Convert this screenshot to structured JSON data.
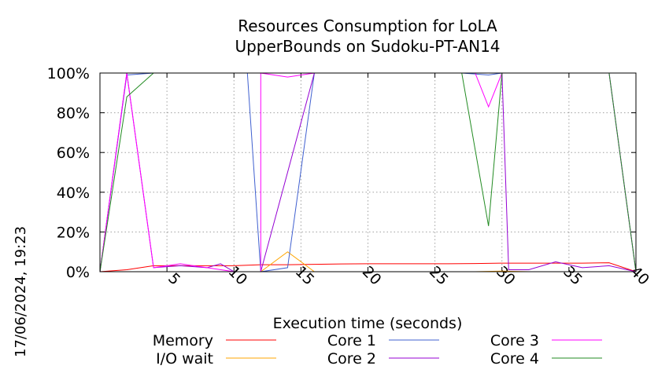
{
  "chart_data": {
    "type": "line",
    "title": [
      "Resources Consumption for LoLA",
      "UpperBounds on Sudoku-PT-AN14"
    ],
    "xlabel": "Execution time (seconds)",
    "ylabel": "",
    "xlim": [
      0,
      40
    ],
    "ylim": [
      0,
      100
    ],
    "x_ticks": [
      5,
      10,
      15,
      20,
      25,
      30,
      35,
      40
    ],
    "y_ticks": [
      0,
      20,
      40,
      60,
      80,
      100
    ],
    "y_tick_labels": [
      "0%",
      "20%",
      "40%",
      "60%",
      "80%",
      "100%"
    ],
    "grid": true,
    "legend_position": "bottom",
    "timestamp": "17/06/2024, 19:23",
    "series": [
      {
        "name": "Memory",
        "color": "#ff0000",
        "points": [
          [
            0,
            0
          ],
          [
            2,
            1
          ],
          [
            4,
            3
          ],
          [
            6,
            3
          ],
          [
            8,
            3
          ],
          [
            10,
            3
          ],
          [
            12,
            3.5
          ],
          [
            14,
            3.5
          ],
          [
            16,
            3.7
          ],
          [
            18,
            3.9
          ],
          [
            20,
            4
          ],
          [
            22,
            4
          ],
          [
            24,
            4
          ],
          [
            26,
            4
          ],
          [
            28,
            4.1
          ],
          [
            30,
            4.3
          ],
          [
            32,
            4.3
          ],
          [
            34,
            4.3
          ],
          [
            36,
            4.3
          ],
          [
            38,
            4.5
          ],
          [
            40,
            0
          ]
        ]
      },
      {
        "name": "I/O wait",
        "color": "#ffa500",
        "points": [
          [
            0,
            0
          ],
          [
            2,
            0
          ],
          [
            4,
            0
          ],
          [
            6,
            0
          ],
          [
            8,
            0
          ],
          [
            10,
            0
          ],
          [
            12,
            0
          ],
          [
            14,
            10
          ],
          [
            16,
            0
          ],
          [
            18,
            0
          ],
          [
            20,
            0
          ],
          [
            22,
            0
          ],
          [
            24,
            0
          ],
          [
            26,
            0
          ],
          [
            28,
            0
          ],
          [
            30,
            0.3
          ],
          [
            32,
            0
          ],
          [
            34,
            0
          ],
          [
            36,
            0
          ],
          [
            38,
            0
          ],
          [
            40,
            0
          ]
        ]
      },
      {
        "name": "Core 1",
        "color": "#4060d0",
        "points": [
          [
            0,
            0
          ],
          [
            2,
            99
          ],
          [
            4,
            100
          ],
          [
            6,
            100
          ],
          [
            8,
            100
          ],
          [
            10,
            100
          ],
          [
            11,
            100
          ],
          [
            12,
            0
          ],
          [
            14,
            2
          ],
          [
            16,
            100
          ],
          [
            18,
            100
          ],
          [
            20,
            100
          ],
          [
            22,
            100
          ],
          [
            24,
            100
          ],
          [
            26,
            100
          ],
          [
            27,
            100
          ],
          [
            29,
            99
          ],
          [
            30,
            100
          ],
          [
            32,
            100
          ],
          [
            34,
            100
          ],
          [
            36,
            100
          ],
          [
            38,
            100
          ],
          [
            40,
            0
          ]
        ]
      },
      {
        "name": "Core 2",
        "color": "#9400d3",
        "points": [
          [
            0,
            0
          ],
          [
            2,
            100
          ],
          [
            4,
            2
          ],
          [
            6,
            3
          ],
          [
            8,
            2
          ],
          [
            9,
            4
          ],
          [
            10,
            0
          ],
          [
            12,
            0
          ],
          [
            14,
            50
          ],
          [
            16,
            100
          ],
          [
            18,
            100
          ],
          [
            20,
            100
          ],
          [
            22,
            100
          ],
          [
            24,
            100
          ],
          [
            26,
            100
          ],
          [
            28,
            100
          ],
          [
            30,
            100
          ],
          [
            30.5,
            1
          ],
          [
            32,
            1
          ],
          [
            34,
            5
          ],
          [
            36,
            2
          ],
          [
            38,
            3
          ],
          [
            40,
            0
          ]
        ]
      },
      {
        "name": "Core 3",
        "color": "#ff00ff",
        "points": [
          [
            0,
            0
          ],
          [
            2,
            100
          ],
          [
            4,
            2
          ],
          [
            6,
            4
          ],
          [
            8,
            2
          ],
          [
            10,
            0
          ],
          [
            12,
            0
          ],
          [
            12,
            100
          ],
          [
            14,
            98
          ],
          [
            16,
            100
          ],
          [
            18,
            100
          ],
          [
            20,
            100
          ],
          [
            22,
            100
          ],
          [
            24,
            100
          ],
          [
            26,
            100
          ],
          [
            28,
            100
          ],
          [
            29,
            83
          ],
          [
            30,
            100
          ],
          [
            32,
            100
          ],
          [
            34,
            100
          ],
          [
            36,
            100
          ],
          [
            38,
            100
          ],
          [
            40,
            0
          ]
        ]
      },
      {
        "name": "Core 4",
        "color": "#228b22",
        "points": [
          [
            0,
            0
          ],
          [
            2,
            88
          ],
          [
            4,
            100
          ],
          [
            6,
            100
          ],
          [
            8,
            100
          ],
          [
            10,
            100
          ],
          [
            12,
            100
          ],
          [
            14,
            100
          ],
          [
            16,
            100
          ],
          [
            18,
            100
          ],
          [
            20,
            100
          ],
          [
            22,
            100
          ],
          [
            24,
            100
          ],
          [
            26,
            100
          ],
          [
            27,
            100
          ],
          [
            29,
            23
          ],
          [
            30,
            100
          ],
          [
            32,
            100
          ],
          [
            34,
            100
          ],
          [
            36,
            100
          ],
          [
            38,
            100
          ],
          [
            40,
            0
          ]
        ]
      }
    ]
  }
}
